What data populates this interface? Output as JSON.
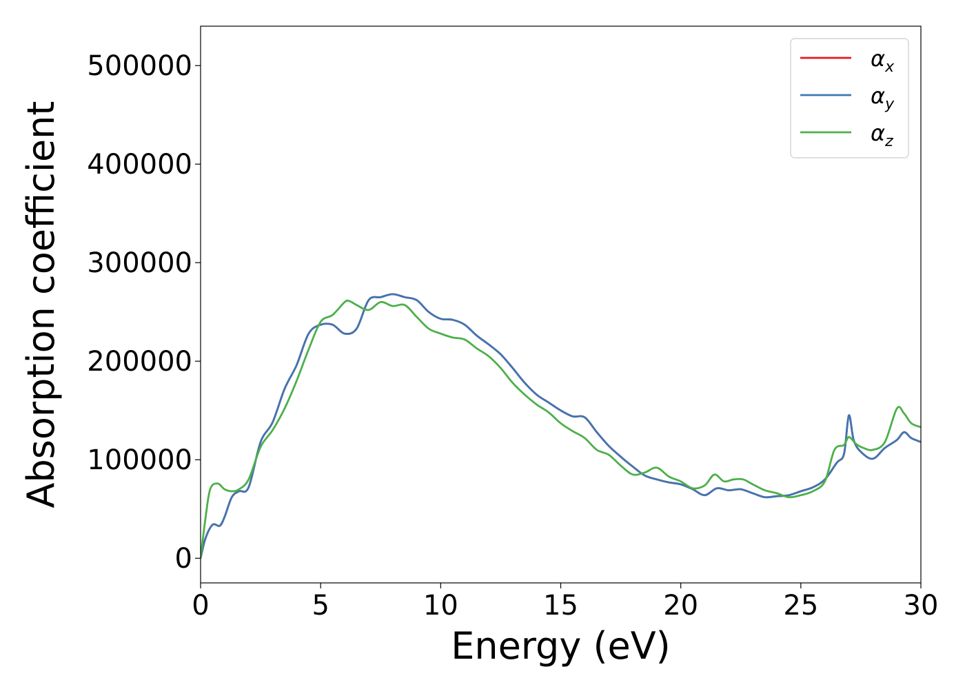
{
  "chart_data": {
    "type": "line",
    "xlabel": "Energy (eV)",
    "ylabel": "Absorption coefficient",
    "xlim": [
      0,
      30
    ],
    "ylim": [
      -25000,
      540000
    ],
    "xticks": [
      0,
      5,
      10,
      15,
      20,
      25,
      30
    ],
    "yticks": [
      0,
      100000,
      200000,
      300000,
      400000,
      500000
    ],
    "grid": false,
    "legend_position": "top-right",
    "series": [
      {
        "name": "α_x",
        "symbol": "α",
        "subscript": "x",
        "color": "#e41a1c",
        "x": [
          0,
          0.2,
          0.5,
          0.8,
          1.0,
          1.3,
          1.6,
          2.0,
          2.5,
          3.0,
          3.5,
          4.0,
          4.5,
          5.0,
          5.5,
          6.0,
          6.5,
          7.0,
          7.5,
          8.0,
          8.5,
          9.0,
          9.5,
          10.0,
          10.5,
          11.0,
          11.5,
          12.0,
          12.5,
          13.0,
          13.5,
          14.0,
          14.5,
          15.0,
          15.5,
          16.0,
          16.5,
          17.0,
          17.5,
          18.0,
          18.5,
          19.0,
          19.5,
          20.0,
          20.5,
          21.0,
          21.5,
          22.0,
          22.5,
          23.0,
          23.5,
          24.0,
          24.5,
          25.0,
          25.5,
          26.0,
          26.5,
          26.8,
          27.0,
          27.2,
          27.5,
          28.0,
          28.5,
          29.0,
          29.3,
          29.6,
          30.0
        ],
        "values": [
          0,
          20000,
          34000,
          33000,
          42000,
          62000,
          68000,
          72000,
          118000,
          138000,
          172000,
          196000,
          228000,
          237000,
          237000,
          228000,
          233000,
          262000,
          265000,
          268000,
          265000,
          262000,
          250000,
          243000,
          242000,
          237000,
          226000,
          217000,
          207000,
          193000,
          178000,
          166000,
          158000,
          150000,
          144000,
          143000,
          128000,
          114000,
          103000,
          93000,
          84000,
          80000,
          77000,
          75000,
          70000,
          64000,
          71000,
          69000,
          70000,
          66000,
          62000,
          63000,
          64000,
          68000,
          72000,
          80000,
          97000,
          106000,
          145000,
          120000,
          108000,
          101000,
          112000,
          120000,
          128000,
          122000,
          118000
        ]
      },
      {
        "name": "α_y",
        "symbol": "α",
        "subscript": "y",
        "color": "#3f76b3",
        "x": [
          0,
          0.2,
          0.5,
          0.8,
          1.0,
          1.3,
          1.6,
          2.0,
          2.5,
          3.0,
          3.5,
          4.0,
          4.5,
          5.0,
          5.5,
          6.0,
          6.5,
          7.0,
          7.5,
          8.0,
          8.5,
          9.0,
          9.5,
          10.0,
          10.5,
          11.0,
          11.5,
          12.0,
          12.5,
          13.0,
          13.5,
          14.0,
          14.5,
          15.0,
          15.5,
          16.0,
          16.5,
          17.0,
          17.5,
          18.0,
          18.5,
          19.0,
          19.5,
          20.0,
          20.5,
          21.0,
          21.5,
          22.0,
          22.5,
          23.0,
          23.5,
          24.0,
          24.5,
          25.0,
          25.5,
          26.0,
          26.5,
          26.8,
          27.0,
          27.2,
          27.5,
          28.0,
          28.5,
          29.0,
          29.3,
          29.6,
          30.0
        ],
        "values": [
          0,
          20000,
          34000,
          33000,
          42000,
          62000,
          68000,
          72000,
          118000,
          138000,
          172000,
          196000,
          228000,
          237000,
          237000,
          228000,
          233000,
          262000,
          265000,
          268000,
          265000,
          262000,
          250000,
          243000,
          242000,
          237000,
          226000,
          217000,
          207000,
          193000,
          178000,
          166000,
          158000,
          150000,
          144000,
          143000,
          128000,
          114000,
          103000,
          93000,
          84000,
          80000,
          77000,
          75000,
          70000,
          64000,
          71000,
          69000,
          70000,
          66000,
          62000,
          63000,
          64000,
          68000,
          72000,
          80000,
          97000,
          106000,
          145000,
          120000,
          108000,
          101000,
          112000,
          120000,
          128000,
          122000,
          118000
        ]
      },
      {
        "name": "α_z",
        "symbol": "α",
        "subscript": "z",
        "color": "#4daf4a",
        "x": [
          0,
          0.2,
          0.4,
          0.7,
          1.0,
          1.3,
          1.6,
          2.0,
          2.5,
          3.0,
          3.5,
          4.0,
          4.5,
          5.0,
          5.5,
          6.0,
          6.2,
          6.5,
          7.0,
          7.5,
          8.0,
          8.5,
          9.0,
          9.5,
          10.0,
          10.5,
          11.0,
          11.5,
          12.0,
          12.5,
          13.0,
          13.5,
          14.0,
          14.5,
          15.0,
          15.5,
          16.0,
          16.5,
          17.0,
          17.5,
          18.0,
          18.5,
          19.0,
          19.5,
          20.0,
          20.5,
          21.0,
          21.4,
          21.8,
          22.2,
          22.6,
          23.0,
          23.5,
          24.0,
          24.5,
          25.0,
          25.5,
          26.0,
          26.4,
          26.8,
          27.0,
          27.3,
          27.6,
          28.0,
          28.5,
          29.0,
          29.3,
          29.6,
          30.0
        ],
        "values": [
          0,
          40000,
          70000,
          76000,
          70000,
          68000,
          70000,
          80000,
          113000,
          130000,
          152000,
          180000,
          212000,
          240000,
          247000,
          260000,
          261000,
          257000,
          252000,
          260000,
          256000,
          257000,
          245000,
          233000,
          228000,
          224000,
          222000,
          213000,
          205000,
          193000,
          178000,
          166000,
          156000,
          148000,
          137000,
          129000,
          122000,
          110000,
          105000,
          94000,
          85000,
          87000,
          92000,
          83000,
          78000,
          71000,
          74000,
          85000,
          78000,
          80000,
          80000,
          75000,
          69000,
          66000,
          62000,
          64000,
          68000,
          78000,
          110000,
          115000,
          123000,
          116000,
          112000,
          110000,
          118000,
          152000,
          147000,
          137000,
          133000
        ]
      }
    ]
  }
}
